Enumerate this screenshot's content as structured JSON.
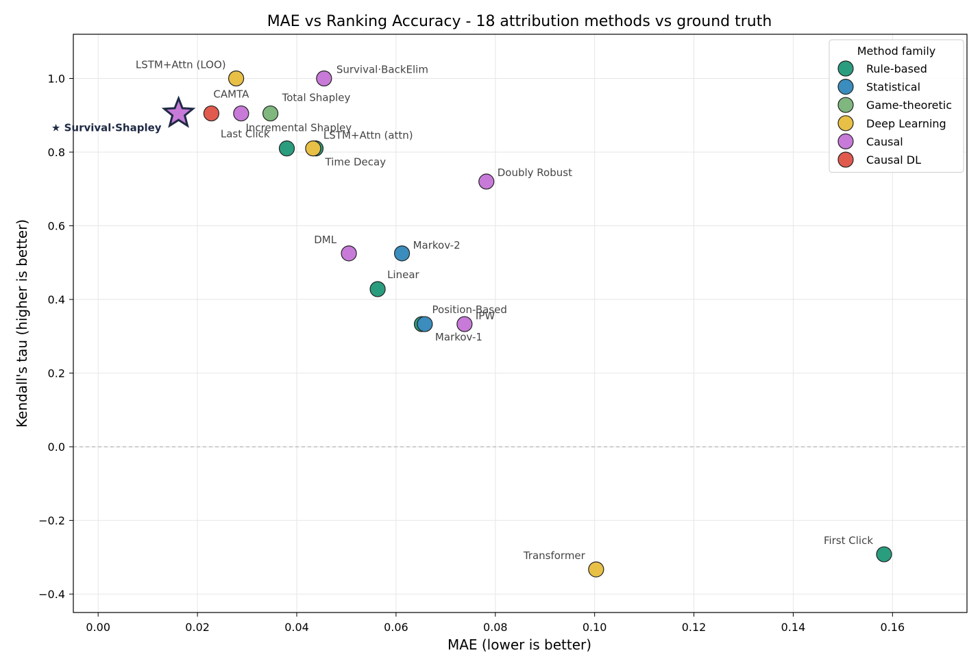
{
  "chart_data": {
    "type": "scatter",
    "title": "MAE vs Ranking Accuracy  -  18 attribution methods vs ground truth",
    "xlabel": "MAE  (lower is better)",
    "ylabel": "Kendall's tau  (higher is better)",
    "xlim": [
      -0.005,
      0.175
    ],
    "ylim": [
      -0.45,
      1.12
    ],
    "xticks": [
      0.0,
      0.02,
      0.04,
      0.06,
      0.08,
      0.1,
      0.12,
      0.14,
      0.16
    ],
    "xtick_labels": [
      "0.00",
      "0.02",
      "0.04",
      "0.06",
      "0.08",
      "0.10",
      "0.12",
      "0.14",
      "0.16"
    ],
    "yticks": [
      -0.4,
      -0.2,
      0.0,
      0.2,
      0.4,
      0.6,
      0.8,
      1.0
    ],
    "ytick_labels": [
      "−0.4",
      "−0.2",
      "0.0",
      "0.2",
      "0.4",
      "0.6",
      "0.8",
      "1.0"
    ],
    "grid": true,
    "reference_line": {
      "y": 0.0,
      "style": "dashed"
    },
    "legend": {
      "title": "Method family",
      "placement": "top-right",
      "entries": [
        {
          "family": "Rule-based",
          "color": "#2a9d7f"
        },
        {
          "family": "Statistical",
          "color": "#3a8dbd"
        },
        {
          "family": "Game-theoretic",
          "color": "#7fb77e"
        },
        {
          "family": "Deep Learning",
          "color": "#e9c046"
        },
        {
          "family": "Causal",
          "color": "#c77ad8"
        },
        {
          "family": "Causal DL",
          "color": "#e05a4e"
        }
      ]
    },
    "points": [
      {
        "name": "★ Survival·Shapley",
        "family": "Causal",
        "x": 0.0162,
        "y": 0.905,
        "marker": "star",
        "highlight": true,
        "label_anchor": "end",
        "label_dx": -25,
        "label_dy": 26
      },
      {
        "name": "CAMTA",
        "family": "Causal DL",
        "x": 0.0228,
        "y": 0.905,
        "label_anchor": "start",
        "label_dx": 3,
        "label_dy": -23
      },
      {
        "name": "LSTM+Attn (LOO)",
        "family": "Deep Learning",
        "x": 0.0278,
        "y": 1.0,
        "label_anchor": "end",
        "label_dx": -15,
        "label_dy": -15
      },
      {
        "name": "Last Click",
        "family": "Causal",
        "x": 0.0288,
        "y": 0.905,
        "label_anchor": "start",
        "label_dx": -30,
        "label_dy": 35
      },
      {
        "name": "Total Shapley",
        "family": "Game-theoretic",
        "x": 0.0347,
        "y": 0.905,
        "label_anchor": "start",
        "label_dx": 17,
        "label_dy": -18
      },
      {
        "name": "Incremental Shapley",
        "family": "Rule-based",
        "x": 0.038,
        "y": 0.81,
        "label_anchor": "start",
        "label_dx": -60,
        "label_dy": -25
      },
      {
        "name": "Time Decay",
        "family": "Rule-based",
        "x": 0.0438,
        "y": 0.81,
        "label_anchor": "start",
        "label_dx": 14,
        "label_dy": 25
      },
      {
        "name": "LSTM+Attn (attn)",
        "family": "Deep Learning",
        "x": 0.0433,
        "y": 0.81,
        "label_anchor": "start",
        "label_dx": 15,
        "label_dy": -14
      },
      {
        "name": "Survival·BackElim",
        "family": "Causal",
        "x": 0.0455,
        "y": 1.0,
        "label_anchor": "start",
        "label_dx": 18,
        "label_dy": -8
      },
      {
        "name": "DML",
        "family": "Causal",
        "x": 0.0505,
        "y": 0.525,
        "label_anchor": "end",
        "label_dx": -18,
        "label_dy": -15
      },
      {
        "name": "Linear",
        "family": "Rule-based",
        "x": 0.0563,
        "y": 0.428,
        "label_anchor": "start",
        "label_dx": 14,
        "label_dy": -16
      },
      {
        "name": "Markov-2",
        "family": "Statistical",
        "x": 0.0612,
        "y": 0.525,
        "label_anchor": "start",
        "label_dx": 16,
        "label_dy": -7
      },
      {
        "name": "Position-Based",
        "family": "Rule-based",
        "x": 0.0652,
        "y": 0.333,
        "label_anchor": "start",
        "label_dx": 15,
        "label_dy": -16
      },
      {
        "name": "Markov-1",
        "family": "Statistical",
        "x": 0.0658,
        "y": 0.333,
        "label_anchor": "start",
        "label_dx": 15,
        "label_dy": 24
      },
      {
        "name": "IPW",
        "family": "Causal",
        "x": 0.0738,
        "y": 0.333,
        "label_anchor": "start",
        "label_dx": 16,
        "label_dy": -7
      },
      {
        "name": "Doubly Robust",
        "family": "Causal",
        "x": 0.0782,
        "y": 0.72,
        "label_anchor": "start",
        "label_dx": 16,
        "label_dy": -8
      },
      {
        "name": "Transformer",
        "family": "Deep Learning",
        "x": 0.1003,
        "y": -0.333,
        "label_anchor": "end",
        "label_dx": -16,
        "label_dy": -15
      },
      {
        "name": "First Click",
        "family": "Rule-based",
        "x": 0.1583,
        "y": -0.292,
        "label_anchor": "end",
        "label_dx": -16,
        "label_dy": -15
      }
    ]
  }
}
